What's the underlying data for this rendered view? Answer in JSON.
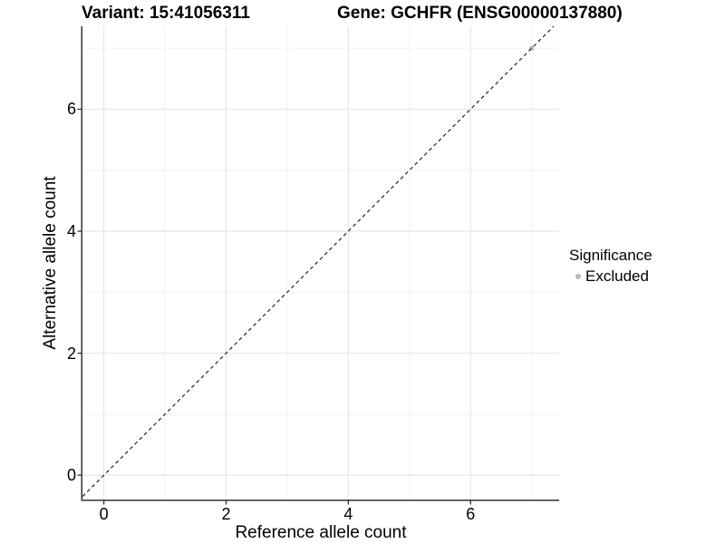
{
  "chart_data": {
    "type": "scatter",
    "titles": {
      "variant": "Variant: 15:41056311",
      "gene": "Gene: GCHFR (ENSG00000137880)"
    },
    "xlabel": "Reference allele count",
    "ylabel": "Alternative allele count",
    "xlim": [
      -0.35,
      7.45
    ],
    "ylim": [
      -0.4,
      7.36
    ],
    "x_major_ticks": [
      0,
      2,
      4,
      6
    ],
    "y_major_ticks": [
      0,
      2,
      4,
      6
    ],
    "x_minor_ticks": [
      1,
      3,
      5,
      7
    ],
    "y_minor_ticks": [
      1,
      3,
      5,
      7
    ],
    "points": [
      {
        "x": 7,
        "y": 7,
        "series": "Excluded"
      }
    ],
    "identity_line": {
      "slope": 1,
      "intercept": 0,
      "style": "dashed"
    },
    "legend": {
      "title": "Significance",
      "position": "right",
      "items": [
        {
          "label": "Excluded",
          "color": "#b9b9b9"
        }
      ]
    },
    "grid": true,
    "colors": {
      "background": "#ffffff",
      "grid_major": "#e7e7e7",
      "grid_minor": "#f1f1f1",
      "axis_line": "#333333",
      "text": "#000000",
      "identity_line": "#111111",
      "point_excluded": "#b9b9b9"
    }
  }
}
